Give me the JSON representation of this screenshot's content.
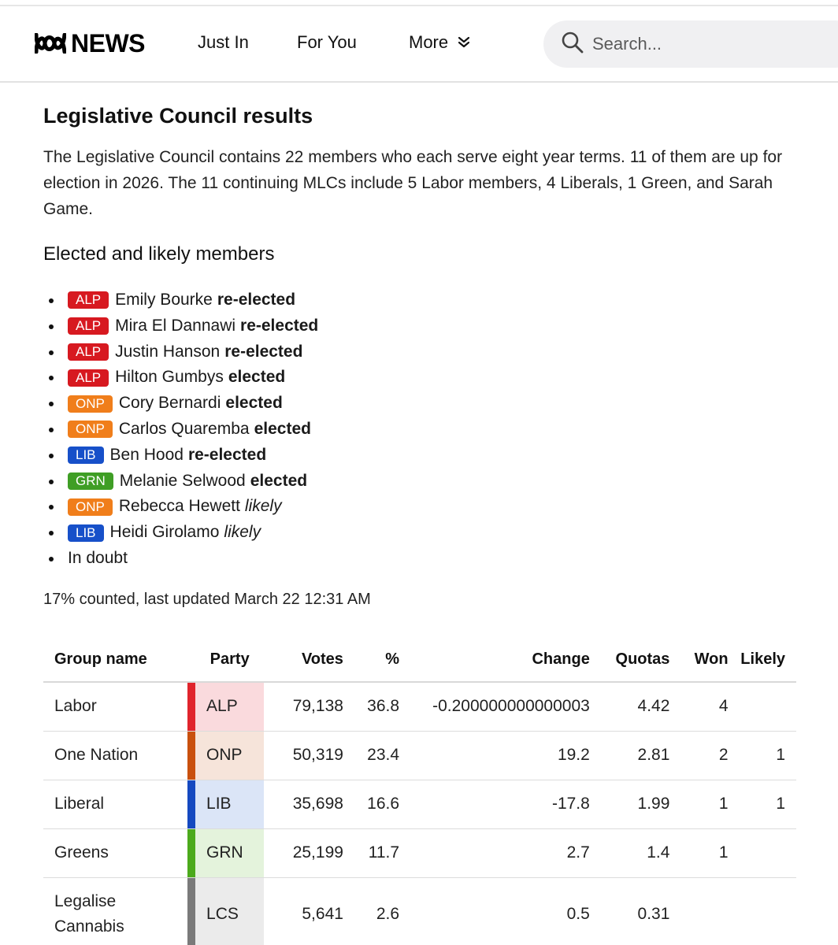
{
  "header": {
    "logo_text": "NEWS",
    "nav": [
      "Just In",
      "For You",
      "More"
    ],
    "search_placeholder": "Search..."
  },
  "article": {
    "title": "Legislative Council results",
    "intro": "The Legislative Council contains 22 members who each serve eight year terms. 11 of them are up for election in 2026. The 11 continuing MLCs include 5 Labor members, 4 Liberals, 1 Green, and Sarah Game.",
    "members_heading": "Elected and likely members",
    "members": [
      {
        "party": "ALP",
        "name": "Emily Bourke",
        "status": "re-elected",
        "style": "bold"
      },
      {
        "party": "ALP",
        "name": "Mira El Dannawi",
        "status": "re-elected",
        "style": "bold"
      },
      {
        "party": "ALP",
        "name": "Justin Hanson",
        "status": "re-elected",
        "style": "bold"
      },
      {
        "party": "ALP",
        "name": "Hilton Gumbys",
        "status": "elected",
        "style": "bold"
      },
      {
        "party": "ONP",
        "name": "Cory Bernardi",
        "status": "elected",
        "style": "bold"
      },
      {
        "party": "ONP",
        "name": "Carlos Quaremba",
        "status": "elected",
        "style": "bold"
      },
      {
        "party": "LIB",
        "name": "Ben Hood",
        "status": "re-elected",
        "style": "bold"
      },
      {
        "party": "GRN",
        "name": "Melanie Selwood",
        "status": "elected",
        "style": "bold"
      },
      {
        "party": "ONP",
        "name": "Rebecca Hewett",
        "status": "likely",
        "style": "italic"
      },
      {
        "party": "LIB",
        "name": "Heidi Girolamo",
        "status": "likely",
        "style": "italic"
      },
      {
        "party": "",
        "name": "In doubt",
        "status": "",
        "style": ""
      }
    ],
    "counted": "17% counted, last updated March 22 12:31 AM"
  },
  "table": {
    "headers": {
      "group": "Group name",
      "party": "Party",
      "votes": "Votes",
      "pct": "%",
      "change": "Change",
      "quotas": "Quotas",
      "won": "Won",
      "likely": "Likely"
    },
    "rows": [
      {
        "group": "Labor",
        "party": "ALP",
        "votes": "79,138",
        "pct": "36.8",
        "change": "-0.200000000000003",
        "quotas": "4.42",
        "won": "4",
        "likely": "",
        "bar": "#e0242c",
        "tint": "#fadadd"
      },
      {
        "group": "One Nation",
        "party": "ONP",
        "votes": "50,319",
        "pct": "23.4",
        "change": "19.2",
        "quotas": "2.81",
        "won": "2",
        "likely": "1",
        "bar": "#c9500e",
        "tint": "#f6e4da"
      },
      {
        "group": "Liberal",
        "party": "LIB",
        "votes": "35,698",
        "pct": "16.6",
        "change": "-17.8",
        "quotas": "1.99",
        "won": "1",
        "likely": "1",
        "bar": "#1549c0",
        "tint": "#dbe5f7"
      },
      {
        "group": "Greens",
        "party": "GRN",
        "votes": "25,199",
        "pct": "11.7",
        "change": "2.7",
        "quotas": "1.4",
        "won": "1",
        "likely": "",
        "bar": "#4caa1c",
        "tint": "#e4f3dc"
      },
      {
        "group": "Legalise Cannabis",
        "party": "LCS",
        "votes": "5,641",
        "pct": "2.6",
        "change": "0.5",
        "quotas": "0.31",
        "won": "",
        "likely": "",
        "bar": "#7a7a7a",
        "tint": "#ebebeb"
      }
    ]
  }
}
